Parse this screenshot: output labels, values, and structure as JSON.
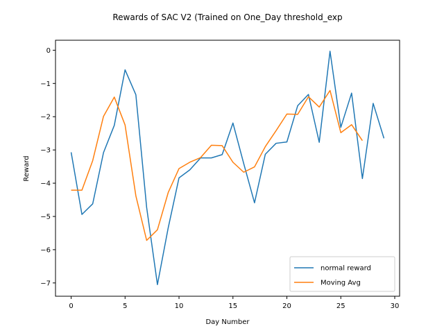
{
  "chart_data": {
    "type": "line",
    "title": "Rewards of SAC V2 (Trained on One_Day threshold_exp",
    "xlabel": "Day Number",
    "ylabel": "Reward",
    "xlim": [
      -1.45,
      30.45
    ],
    "ylim": [
      -7.4,
      0.3
    ],
    "xticks": [
      0,
      5,
      10,
      15,
      20,
      25,
      30
    ],
    "yticks": [
      0,
      -1,
      -2,
      -3,
      -4,
      -5,
      -6,
      -7
    ],
    "ytick_labels": [
      "0",
      "−1",
      "−2",
      "−3",
      "−4",
      "−5",
      "−6",
      "−7"
    ],
    "grid": false,
    "legend_position": "lower-right",
    "series": [
      {
        "name": "normal reward",
        "color": "#1f77b4",
        "x": [
          0,
          1,
          2,
          3,
          4,
          5,
          6,
          7,
          8,
          9,
          10,
          11,
          12,
          13,
          14,
          15,
          16,
          17,
          18,
          19,
          20,
          21,
          22,
          23,
          24,
          25,
          26,
          27,
          28,
          29
        ],
        "values": [
          -3.07,
          -4.94,
          -4.62,
          -3.08,
          -2.26,
          -0.59,
          -1.34,
          -4.73,
          -7.05,
          -5.34,
          -3.84,
          -3.6,
          -3.24,
          -3.24,
          -3.14,
          -2.19,
          -3.41,
          -4.59,
          -3.13,
          -2.8,
          -2.76,
          -1.67,
          -1.33,
          -2.77,
          -0.03,
          -2.32,
          -1.29,
          -3.86,
          -1.6,
          -2.65
        ]
      },
      {
        "name": "Moving Avg",
        "color": "#ff7f0e",
        "x": [
          0,
          1,
          2,
          3,
          4,
          5,
          6,
          7,
          8,
          9,
          10,
          11,
          12,
          13,
          14,
          15,
          16,
          17,
          18,
          19,
          20,
          21,
          22,
          23,
          24,
          25,
          26,
          27
        ],
        "values": [
          -4.21,
          -4.21,
          -3.32,
          -1.99,
          -1.41,
          -2.25,
          -4.38,
          -5.72,
          -5.4,
          -4.28,
          -3.56,
          -3.37,
          -3.23,
          -2.86,
          -2.87,
          -3.37,
          -3.67,
          -3.51,
          -2.9,
          -2.42,
          -1.92,
          -1.93,
          -1.4,
          -1.71,
          -1.21,
          -2.48,
          -2.24,
          -2.72
        ]
      }
    ]
  }
}
